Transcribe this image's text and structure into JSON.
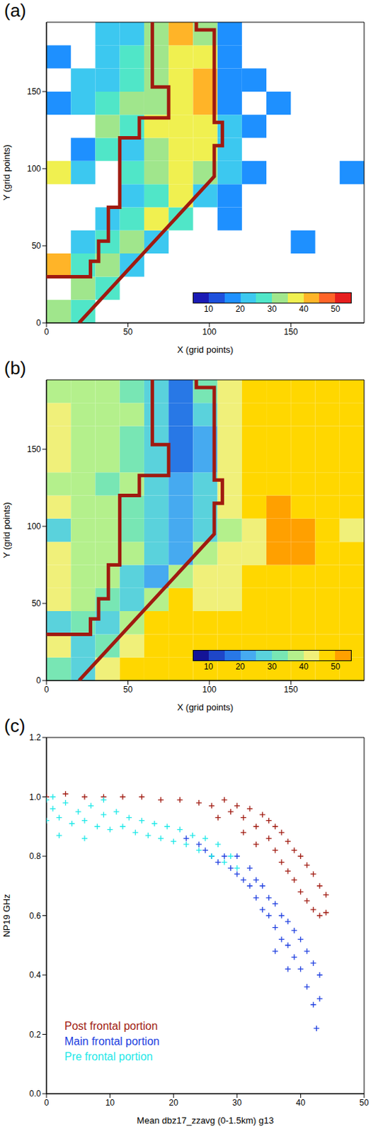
{
  "chart_data": [
    {
      "type": "heatmap",
      "title": "(a)",
      "x_label": "X (grid points)",
      "y_label": "Y (grid points)",
      "xlim": [
        0,
        195
      ],
      "ylim": [
        0,
        195
      ],
      "xticks": [
        0,
        50,
        100,
        150
      ],
      "yticks": [
        0,
        50,
        100,
        150
      ],
      "x_edges": [
        0,
        15,
        30,
        45,
        60,
        75,
        90,
        105,
        120,
        135,
        150,
        165,
        180,
        195
      ],
      "y_edges": [
        0,
        15,
        30,
        45,
        60,
        75,
        90,
        105,
        120,
        135,
        150,
        165,
        180,
        195
      ],
      "cells": [
        [
          30,
          28,
          null,
          null,
          null,
          null,
          null,
          null,
          null,
          null,
          null,
          null,
          null
        ],
        [
          null,
          30,
          28,
          null,
          null,
          null,
          null,
          null,
          null,
          null,
          null,
          null,
          null
        ],
        [
          40,
          25,
          30,
          20,
          null,
          null,
          null,
          null,
          null,
          null,
          null,
          null,
          null
        ],
        [
          null,
          20,
          25,
          30,
          22,
          null,
          null,
          null,
          null,
          null,
          15,
          null,
          null
        ],
        [
          null,
          null,
          20,
          25,
          35,
          25,
          null,
          15,
          null,
          null,
          null,
          null,
          null
        ],
        [
          null,
          null,
          null,
          20,
          25,
          38,
          20,
          15,
          null,
          null,
          null,
          null,
          null
        ],
        [
          38,
          20,
          null,
          25,
          30,
          35,
          30,
          20,
          15,
          null,
          null,
          null,
          15
        ],
        [
          null,
          15,
          25,
          20,
          30,
          35,
          35,
          20,
          null,
          null,
          null,
          null,
          null
        ],
        [
          null,
          null,
          30,
          25,
          35,
          35,
          38,
          20,
          15,
          null,
          null,
          null,
          null
        ],
        [
          15,
          20,
          25,
          30,
          32,
          35,
          40,
          18,
          null,
          15,
          null,
          null,
          null
        ],
        [
          null,
          20,
          20,
          25,
          30,
          35,
          40,
          15,
          15,
          null,
          null,
          null,
          null
        ],
        [
          15,
          null,
          20,
          25,
          30,
          38,
          35,
          15,
          null,
          null,
          null,
          null,
          null
        ],
        [
          null,
          null,
          20,
          22,
          30,
          40,
          30,
          15,
          null,
          null,
          null,
          null,
          null
        ]
      ],
      "colorbar": {
        "range": [
          5,
          55
        ],
        "ticks": [
          10,
          20,
          30,
          40,
          50
        ],
        "colors": [
          "#1a1ab4",
          "#1e50dc",
          "#1e90ff",
          "#3cc8f0",
          "#50e6c8",
          "#a0e68c",
          "#f0f050",
          "#ffb428",
          "#ff6428",
          "#e61e1e"
        ]
      },
      "boundaries": [
        {
          "color": "#a01a10",
          "points": [
            [
              65,
              195
            ],
            [
              65,
              153
            ],
            [
              75,
              153
            ],
            [
              75,
              133
            ],
            [
              57,
              133
            ],
            [
              57,
              120
            ],
            [
              45,
              120
            ],
            [
              45,
              75
            ],
            [
              38,
              75
            ],
            [
              38,
              53
            ],
            [
              32,
              53
            ],
            [
              32,
              40
            ],
            [
              27,
              40
            ],
            [
              27,
              30
            ],
            [
              0,
              30
            ]
          ]
        },
        {
          "color": "#a01a10",
          "points": [
            [
              92,
              195
            ],
            [
              92,
              190
            ],
            [
              103,
              190
            ],
            [
              103,
              130
            ],
            [
              108,
              130
            ],
            [
              108,
              115
            ],
            [
              103,
              115
            ],
            [
              103,
              95
            ],
            [
              20,
              0
            ]
          ]
        }
      ]
    },
    {
      "type": "heatmap",
      "title": "(b)",
      "x_label": "X (grid points)",
      "y_label": "Y (grid points)",
      "xlim": [
        0,
        195
      ],
      "ylim": [
        0,
        195
      ],
      "xticks": [
        0,
        50,
        100,
        150
      ],
      "yticks": [
        0,
        50,
        100,
        150
      ],
      "x_edges": [
        0,
        15,
        30,
        45,
        60,
        75,
        90,
        105,
        120,
        135,
        150,
        165,
        180,
        195
      ],
      "y_edges": [
        0,
        15,
        30,
        45,
        60,
        75,
        90,
        105,
        120,
        135,
        150,
        165,
        180,
        195
      ],
      "cells": [
        [
          30,
          25,
          40,
          48,
          48,
          48,
          48,
          48,
          48,
          48,
          48,
          48,
          48
        ],
        [
          40,
          25,
          30,
          42,
          48,
          48,
          48,
          48,
          48,
          48,
          48,
          48,
          48
        ],
        [
          28,
          30,
          28,
          38,
          45,
          48,
          48,
          48,
          48,
          48,
          48,
          48,
          48
        ],
        [
          40,
          38,
          30,
          25,
          38,
          45,
          42,
          44,
          48,
          48,
          48,
          48,
          48
        ],
        [
          42,
          38,
          38,
          28,
          22,
          35,
          40,
          42,
          45,
          48,
          48,
          48,
          48
        ],
        [
          40,
          38,
          35,
          35,
          25,
          20,
          35,
          40,
          42,
          53,
          53,
          48,
          48
        ],
        [
          28,
          35,
          35,
          32,
          25,
          20,
          28,
          38,
          42,
          53,
          53,
          48,
          40
        ],
        [
          40,
          38,
          35,
          32,
          28,
          20,
          25,
          40,
          45,
          53,
          48,
          48,
          48
        ],
        [
          38,
          38,
          30,
          35,
          28,
          20,
          25,
          40,
          45,
          48,
          48,
          48,
          48
        ],
        [
          40,
          38,
          35,
          32,
          28,
          18,
          20,
          40,
          48,
          45,
          48,
          48,
          48
        ],
        [
          40,
          35,
          38,
          32,
          25,
          15,
          22,
          42,
          45,
          48,
          48,
          48,
          48
        ],
        [
          40,
          38,
          35,
          35,
          25,
          18,
          25,
          40,
          48,
          48,
          48,
          48,
          48
        ],
        [
          38,
          38,
          38,
          30,
          25,
          15,
          30,
          42,
          48,
          48,
          48,
          48,
          48
        ]
      ],
      "colorbar": {
        "range": [
          5,
          55
        ],
        "ticks": [
          10,
          20,
          30,
          40,
          50
        ],
        "colors": [
          "#141496",
          "#1e46c8",
          "#2878e6",
          "#46aaf0",
          "#5ad2dc",
          "#78e6b4",
          "#b4f08c",
          "#f0f07a",
          "#ffd700",
          "#ffa000"
        ]
      },
      "boundaries": [
        {
          "color": "#a01a10",
          "points": [
            [
              65,
              195
            ],
            [
              65,
              153
            ],
            [
              75,
              153
            ],
            [
              75,
              133
            ],
            [
              57,
              133
            ],
            [
              57,
              120
            ],
            [
              45,
              120
            ],
            [
              45,
              75
            ],
            [
              38,
              75
            ],
            [
              38,
              53
            ],
            [
              32,
              53
            ],
            [
              32,
              40
            ],
            [
              27,
              40
            ],
            [
              27,
              30
            ],
            [
              0,
              30
            ]
          ]
        },
        {
          "color": "#a01a10",
          "points": [
            [
              92,
              195
            ],
            [
              92,
              190
            ],
            [
              103,
              190
            ],
            [
              103,
              130
            ],
            [
              108,
              130
            ],
            [
              108,
              115
            ],
            [
              103,
              115
            ],
            [
              103,
              95
            ],
            [
              20,
              0
            ]
          ]
        }
      ]
    },
    {
      "type": "scatter",
      "title": "(c)",
      "x_label": "Mean dbz17_zzavg (0-1.5km) g13",
      "y_label": "NP19 GHz",
      "xlim": [
        0,
        50
      ],
      "ylim": [
        0,
        1.2
      ],
      "xticks": [
        0,
        10,
        20,
        30,
        40,
        50
      ],
      "yticks": [
        {
          "value": 0,
          "label": "0.0"
        },
        0.2,
        0.4,
        0.6,
        0.8,
        {
          "value": 1,
          "label": "1.0"
        },
        1.2
      ],
      "legend": "lower left",
      "series": [
        {
          "name": "Post frontal portion",
          "color": "#a01a10",
          "marker": "plus",
          "x": [
            0,
            3,
            6,
            9,
            12,
            15,
            18,
            21,
            24,
            26,
            28,
            29,
            30,
            31,
            32,
            33,
            34,
            35,
            35,
            36,
            36,
            37,
            37,
            38,
            38,
            39,
            39,
            40,
            40,
            41,
            41,
            42,
            42,
            43,
            43,
            44,
            44,
            27,
            31,
            33
          ],
          "values": [
            1.0,
            1.01,
            1.0,
            1.0,
            1.0,
            1.0,
            0.99,
            0.99,
            0.98,
            0.97,
            0.99,
            0.95,
            0.97,
            0.93,
            0.96,
            0.9,
            0.94,
            0.86,
            0.92,
            0.82,
            0.9,
            0.78,
            0.88,
            0.75,
            0.85,
            0.72,
            0.82,
            0.68,
            0.8,
            0.65,
            0.77,
            0.62,
            0.74,
            0.6,
            0.7,
            0.61,
            0.67,
            0.93,
            0.88,
            0.84
          ]
        },
        {
          "name": "Main frontal portion",
          "color": "#2040e0",
          "marker": "plus",
          "x": [
            22,
            24,
            25,
            26,
            27,
            28,
            29,
            30,
            30,
            31,
            32,
            32,
            33,
            33,
            34,
            34,
            35,
            35,
            36,
            36,
            37,
            37,
            38,
            38,
            39,
            39,
            40,
            40,
            41,
            41,
            42,
            42,
            42.5,
            43,
            43,
            36,
            38
          ],
          "values": [
            0.86,
            0.84,
            0.82,
            0.8,
            0.78,
            0.8,
            0.76,
            0.74,
            0.8,
            0.72,
            0.7,
            0.76,
            0.66,
            0.72,
            0.62,
            0.7,
            0.6,
            0.66,
            0.56,
            0.64,
            0.52,
            0.6,
            0.5,
            0.58,
            0.46,
            0.55,
            0.42,
            0.52,
            0.36,
            0.48,
            0.3,
            0.44,
            0.22,
            0.4,
            0.32,
            0.48,
            0.42
          ]
        },
        {
          "name": "Pre frontal portion",
          "color": "#1ee8e8",
          "marker": "plus",
          "x": [
            0,
            0,
            1,
            2,
            3,
            4,
            5,
            6,
            7,
            8,
            9,
            10,
            11,
            12,
            13,
            14,
            15,
            16,
            17,
            18,
            19,
            20,
            21,
            22,
            23,
            24,
            25,
            26,
            27,
            28,
            29,
            30,
            2,
            6,
            1,
            9
          ],
          "values": [
            0.99,
            0.92,
            0.96,
            0.93,
            0.98,
            0.91,
            0.95,
            0.92,
            0.97,
            0.9,
            0.94,
            0.89,
            0.95,
            0.9,
            0.93,
            0.88,
            0.92,
            0.87,
            0.91,
            0.86,
            0.9,
            0.85,
            0.89,
            0.84,
            0.87,
            0.82,
            0.86,
            0.8,
            0.84,
            0.78,
            0.8,
            0.76,
            0.87,
            0.86,
            1.0,
            0.99
          ]
        }
      ]
    }
  ]
}
